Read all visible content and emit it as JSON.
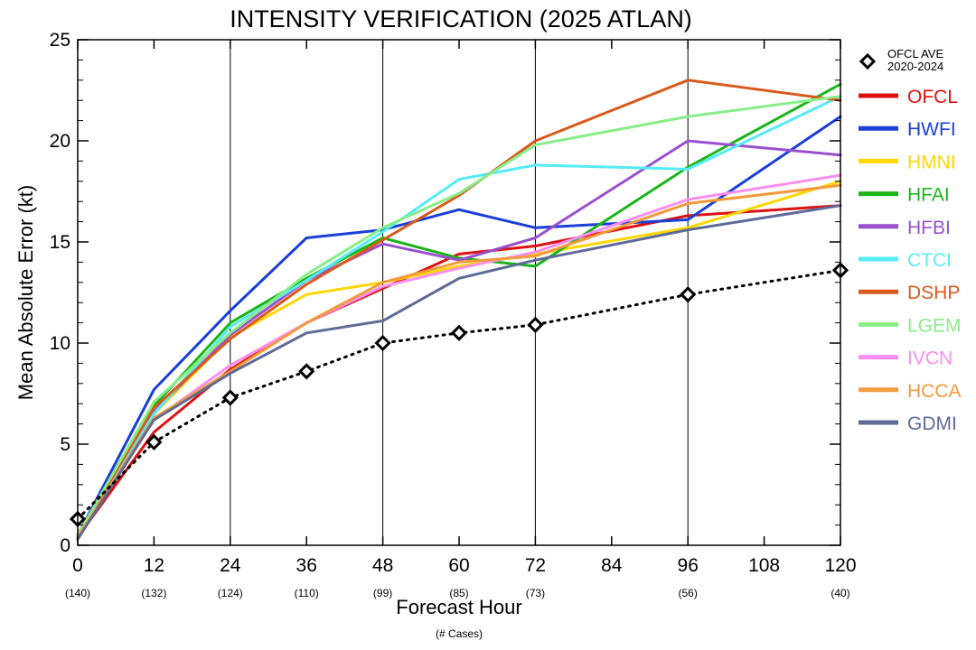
{
  "chart_data": {
    "type": "line",
    "title": "INTENSITY VERIFICATION (2025 ATLAN)",
    "xlabel": "Forecast Hour",
    "xlabel_sub": "(# Cases)",
    "ylabel": "Mean Absolute Error (kt)",
    "x": [
      0,
      12,
      24,
      36,
      48,
      60,
      72,
      96,
      120
    ],
    "x_tick_labels": [
      "0",
      "12",
      "24",
      "36",
      "48",
      "60",
      "72",
      "84",
      "96",
      "108",
      "120"
    ],
    "x_tick_values": [
      0,
      12,
      24,
      36,
      48,
      60,
      72,
      84,
      96,
      108,
      120
    ],
    "case_counts": [
      "(140)",
      "(132)",
      "(124)",
      "(110)",
      "(99)",
      "(85)",
      "(73)",
      "(56)",
      "(40)"
    ],
    "case_count_x": [
      0,
      12,
      24,
      36,
      48,
      60,
      72,
      96,
      120
    ],
    "y_tick_values": [
      0,
      5,
      10,
      15,
      20,
      25
    ],
    "y_tick_labels": [
      "0",
      "5",
      "10",
      "15",
      "20",
      "25"
    ],
    "xlim": [
      0,
      120
    ],
    "ylim": [
      0,
      25
    ],
    "vertical_gridlines_x": [
      24,
      48,
      72,
      96
    ],
    "reference": {
      "name": "OFCL AVE",
      "name_line2": "2020-2024",
      "color": "#000000",
      "values": [
        1.3,
        5.1,
        7.3,
        8.6,
        10.0,
        10.5,
        10.9,
        12.4,
        13.6
      ]
    },
    "series": [
      {
        "name": "OFCL",
        "color": "#dd1111",
        "values": [
          0.4,
          5.6,
          8.7,
          11.0,
          12.7,
          14.4,
          14.8,
          16.3,
          16.8
        ]
      },
      {
        "name": "HWFI",
        "color": "#1a3fd6",
        "values": [
          0.5,
          7.7,
          11.6,
          15.2,
          15.6,
          16.6,
          15.7,
          16.1,
          21.2
        ]
      },
      {
        "name": "HMNI",
        "color": "#ffd700",
        "values": [
          0.5,
          6.5,
          10.3,
          12.4,
          13.0,
          13.8,
          14.4,
          15.7,
          18.0
        ]
      },
      {
        "name": "HFAI",
        "color": "#19b51a",
        "values": [
          0.5,
          6.9,
          11.0,
          13.2,
          15.2,
          14.2,
          13.8,
          18.7,
          22.8
        ]
      },
      {
        "name": "HFBI",
        "color": "#9a4fd0",
        "values": [
          0.5,
          6.6,
          10.4,
          13.1,
          14.9,
          14.1,
          15.2,
          20.0,
          19.3
        ]
      },
      {
        "name": "CTCI",
        "color": "#55ecf5",
        "values": [
          0.5,
          6.5,
          10.8,
          13.1,
          15.5,
          18.1,
          18.8,
          18.6,
          22.2
        ]
      },
      {
        "name": "DSHP",
        "color": "#d95a1c",
        "values": [
          0.5,
          6.8,
          10.2,
          12.9,
          15.1,
          17.3,
          20.0,
          23.0,
          22.0
        ]
      },
      {
        "name": "LGEM",
        "color": "#88ee88",
        "values": [
          0.5,
          7.1,
          10.5,
          13.4,
          15.7,
          17.4,
          19.8,
          21.2,
          22.2
        ]
      },
      {
        "name": "IVCN",
        "color": "#f98ef0",
        "values": [
          0.4,
          6.2,
          8.9,
          11.0,
          12.8,
          13.7,
          14.5,
          17.1,
          18.3
        ]
      },
      {
        "name": "HCCA",
        "color": "#f39a3c",
        "values": [
          0.4,
          6.3,
          8.6,
          11.0,
          13.0,
          14.0,
          14.3,
          16.9,
          17.8
        ]
      },
      {
        "name": "GDMI",
        "color": "#5e6a97",
        "values": [
          0.3,
          6.2,
          8.5,
          10.5,
          11.1,
          13.2,
          14.1,
          15.6,
          16.8
        ]
      }
    ]
  }
}
